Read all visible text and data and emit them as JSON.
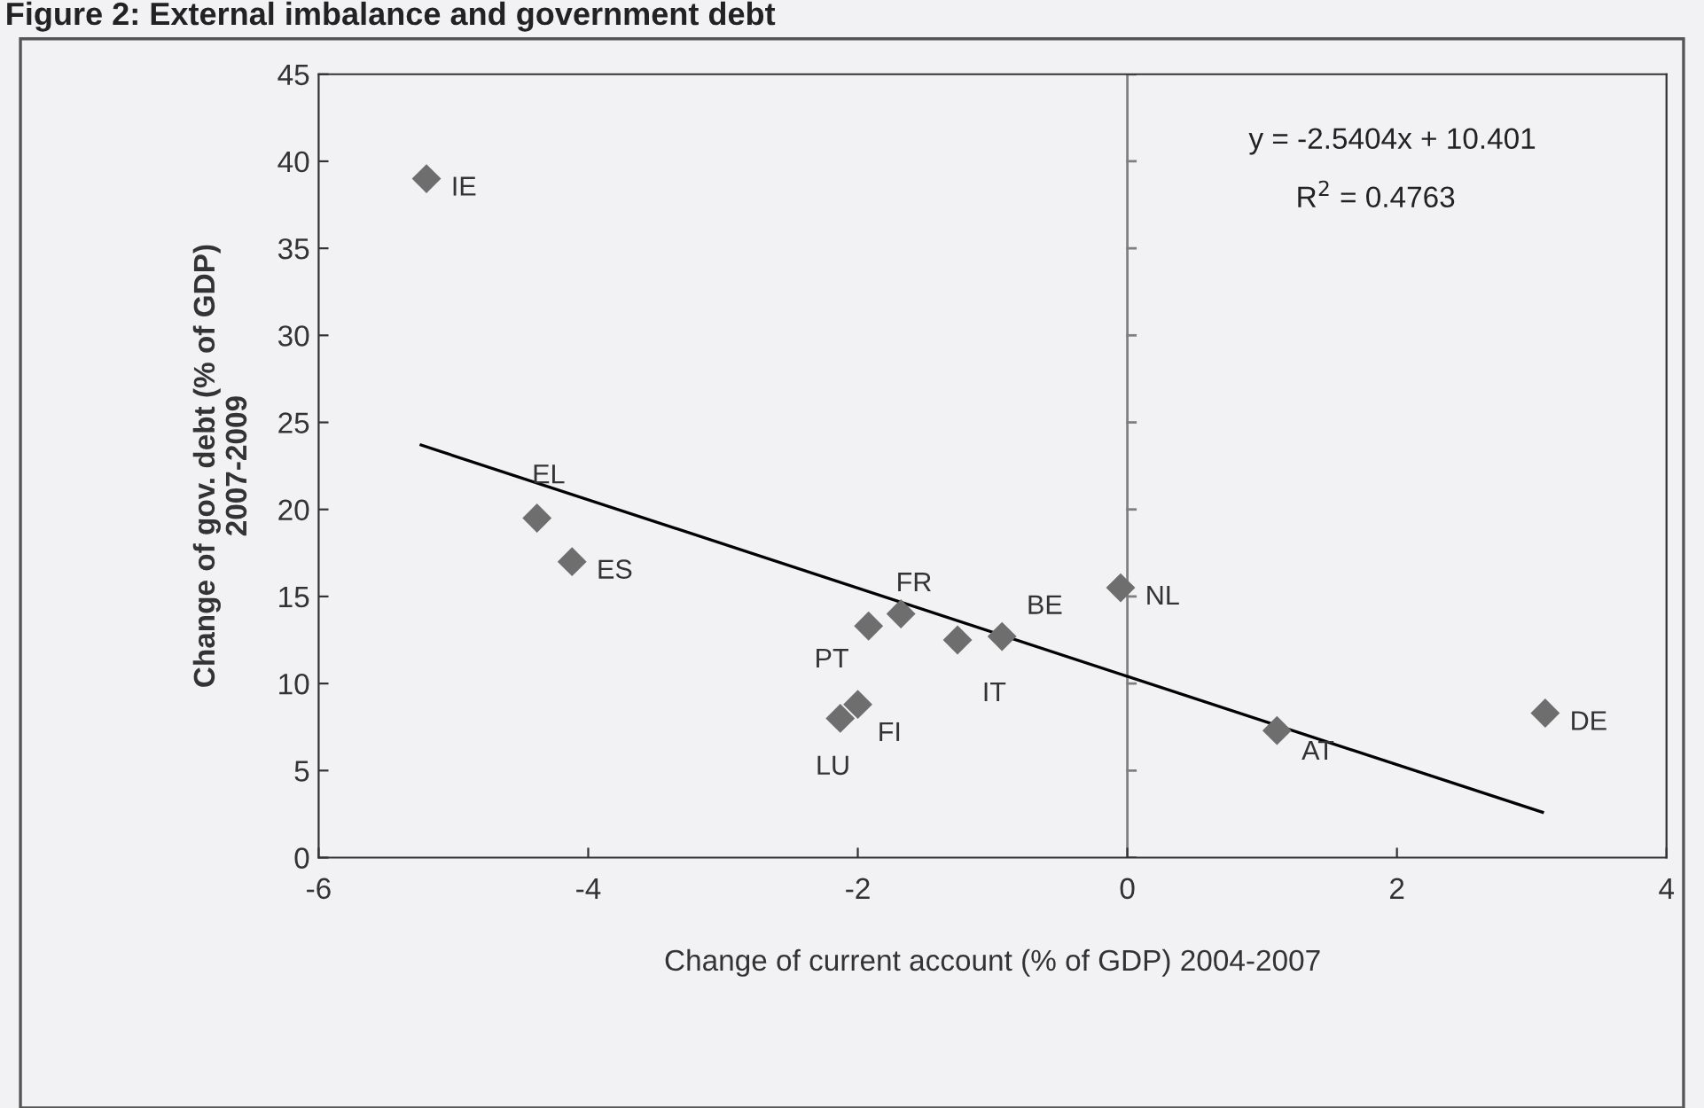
{
  "chart_data": {
    "type": "scatter",
    "title": "Figure 2: External imbalance and government debt",
    "xlabel": "Change of current account (% of GDP) 2004-2007",
    "ylabel": "Change of gov. debt (% of GDP)\n2007-2009",
    "series": [
      {
        "color": "#6e6e6e",
        "marker": "diamond",
        "x": [
          -5.2,
          -4.38,
          -4.12,
          -1.92,
          -1.68,
          -1.26,
          -0.93,
          -0.05,
          -2.13,
          -2.0,
          1.11,
          3.1
        ],
        "values": [
          39,
          19.5,
          17.0,
          13.3,
          14.0,
          12.5,
          12.7,
          15.5,
          8.0,
          8.8,
          7.3,
          8.3
        ]
      },
      {
        "type": "line",
        "color": "#000000",
        "marker": "none",
        "x": [
          -5.24,
          3.08
        ],
        "values": [
          23.7,
          2.6
        ]
      }
    ],
    "annotations": [
      "y = -2.5404x + 10.401",
      "R$^{2}$ = 0.4763",
      {
        "text": "IE",
        "x": -5.2,
        "y": 39
      },
      {
        "text": "EL",
        "x": -4.38,
        "y": 19.5
      },
      {
        "text": "ES",
        "x": -4.12,
        "y": 17.0
      },
      {
        "text": "PT",
        "x": -1.92,
        "y": 13.3
      },
      {
        "text": "FR",
        "x": -1.68,
        "y": 14.0
      },
      {
        "text": "IT",
        "x": -1.26,
        "y": 12.5
      },
      {
        "text": "BE",
        "x": -0.93,
        "y": 12.7
      },
      {
        "text": "NL",
        "x": -0.05,
        "y": 15.5
      },
      {
        "text": "LU",
        "x": -2.13,
        "y": 8.0
      },
      {
        "text": "FI",
        "x": -2.0,
        "y": 8.8
      },
      {
        "text": "AT",
        "x": 1.11,
        "y": 7.3
      },
      {
        "text": "DE",
        "x": 3.1,
        "y": 8.3
      }
    ],
    "ref_lines": [
      {
        "axis": "x",
        "value": 0,
        "color": "#808080"
      }
    ],
    "xlim": [
      -6,
      4
    ],
    "xticks": [
      -6,
      -4,
      -2,
      0,
      2,
      4
    ],
    "ylim": [
      0,
      45
    ],
    "yticks": [
      0,
      5,
      10,
      15,
      20,
      25,
      30,
      35,
      40,
      45
    ],
    "grid": false,
    "legend": false
  }
}
